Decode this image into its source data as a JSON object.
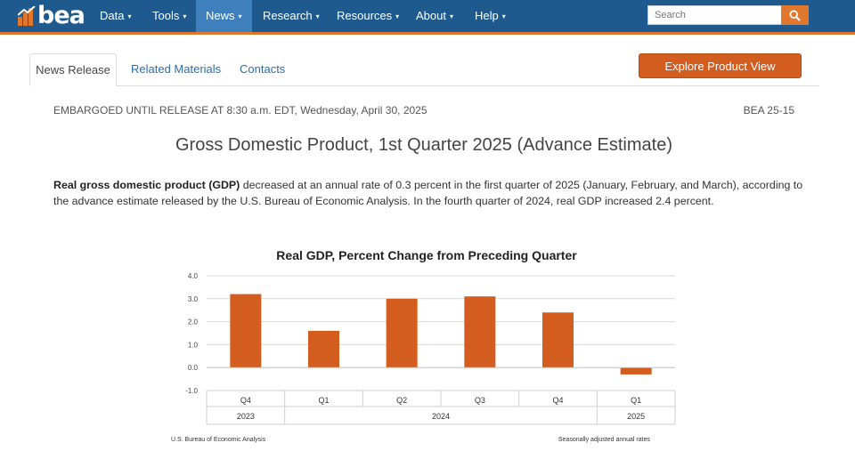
{
  "nav": {
    "logo_text": "bea",
    "items": [
      "Data",
      "Tools",
      "News",
      "Research",
      "Resources",
      "About",
      "Help"
    ],
    "active": "News",
    "search_placeholder": "Search",
    "colors": {
      "bar": "#1f5a8f",
      "active": "#3e80bd",
      "accent": "#e0772d"
    }
  },
  "tabs": [
    "News Release",
    "Related Materials",
    "Contacts"
  ],
  "explore_button": "Explore Product View",
  "embargo": "EMBARGOED UNTIL RELEASE AT 8:30 a.m. EDT, Wednesday, April 30, 2025",
  "release_number": "BEA 25-15",
  "title": "Gross Domestic Product, 1st Quarter 2025 (Advance Estimate)",
  "paragraph": {
    "bold": "Real gross domestic product (GDP)",
    "rest": " decreased at an annual rate of 0.3 percent in the first quarter of 2025 (January, February, and March), according to the advance estimate released by the U.S. Bureau of Economic Analysis. In the fourth quarter of 2024, real GDP increased 2.4 percent."
  },
  "chart_data": {
    "type": "bar",
    "title": "Real GDP, Percent Change from Preceding Quarter",
    "categories": [
      "Q4",
      "Q1",
      "Q2",
      "Q3",
      "Q4",
      "Q1"
    ],
    "years": [
      {
        "label": "2023",
        "span": 1
      },
      {
        "label": "2024",
        "span": 4
      },
      {
        "label": "2025",
        "span": 1
      }
    ],
    "values": [
      3.2,
      1.6,
      3.0,
      3.1,
      2.4,
      -0.3
    ],
    "yticks": [
      "4.0",
      "3.0",
      "2.0",
      "1.0",
      "0.0",
      "-1.0"
    ],
    "ylim": [
      -1,
      4
    ],
    "bar_color": "#d35d1f",
    "source": "U.S. Bureau of Economic Analysis",
    "note": "Seasonally adjusted annual rates"
  }
}
